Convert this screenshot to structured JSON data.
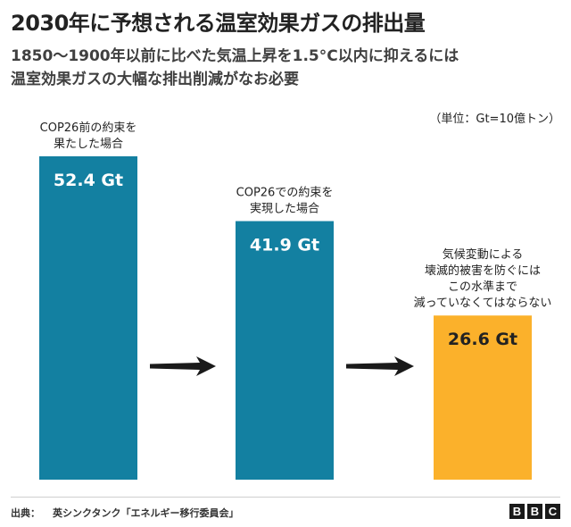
{
  "header": {
    "title": "2030年に予想される温室効果ガスの排出量",
    "subtitle_lines": [
      "1850〜1900年以前に比べた気温上昇を1.5°C以内に抑えるには",
      "温室効果ガスの大幅な排出削減がなお必要"
    ],
    "unit_note": "（単位：Gt=10億トン）"
  },
  "chart_data": {
    "type": "bar",
    "title": "2030年に予想される温室効果ガスの排出量",
    "categories": [
      "COP26前の約束を果たした場合",
      "COP26での約束を実現した場合",
      "気候変動による壊滅的被害を防ぐにはこの水準まで減っていなくてはならない"
    ],
    "category_label_lines": [
      [
        "COP26前の約束を",
        "果たした場合"
      ],
      [
        "COP26での約束を",
        "実現した場合"
      ],
      [
        "気候変動による",
        "壊滅的被害を防ぐには",
        "この水準まで",
        "減っていなくてはならない"
      ]
    ],
    "values": [
      52.4,
      41.9,
      26.6
    ],
    "value_labels": [
      "52.4 Gt",
      "41.9 Gt",
      "26.6 Gt"
    ],
    "unit": "Gt",
    "colors": [
      "#1380a1",
      "#1380a1",
      "#fbb12b"
    ],
    "ylim": [
      0,
      52.4
    ],
    "xlabel": "",
    "ylabel": "",
    "grid": false,
    "annotations": [
      "arrow from bar 1 to bar 2",
      "arrow from bar 2 to bar 3"
    ]
  },
  "footer": {
    "source_label": "出典：",
    "source_text": "英シンクタンク「エネルギー移行委員会」",
    "logo_letters": [
      "B",
      "B",
      "C"
    ]
  }
}
